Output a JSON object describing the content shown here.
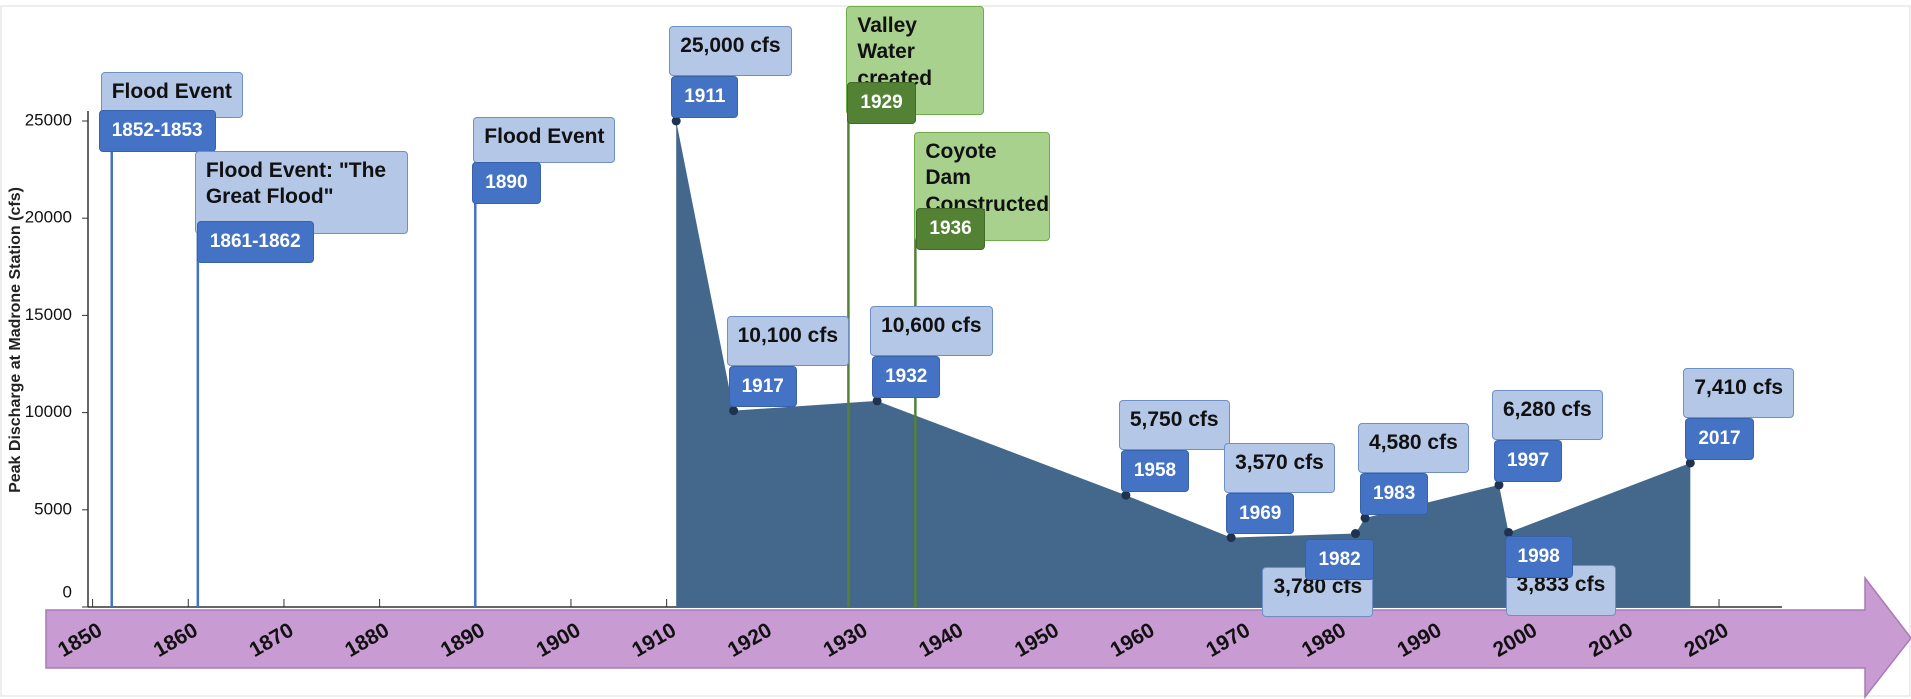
{
  "chart_data": {
    "type": "area",
    "y_label": "Peak Discharge at Madrone Station (cfs)",
    "color": "#44688b",
    "x": [
      1911,
      1917,
      1932,
      1958,
      1969,
      1982,
      1983,
      1997,
      1998,
      2017
    ],
    "values": [
      25000,
      10100,
      10600,
      5750,
      3570,
      3780,
      4580,
      6280,
      3833,
      7410
    ],
    "value_labels": [
      "25,000 cfs",
      "10,100 cfs",
      "10,600 cfs",
      "5,750 cfs",
      "3,570 cfs",
      "3,780 cfs",
      "4,580 cfs",
      "6,280 cfs",
      "3,833 cfs",
      "7,410 cfs"
    ],
    "xlim": [
      1850,
      2027
    ],
    "ylim": [
      0,
      25000
    ],
    "xticks": [
      1850,
      1860,
      1870,
      1880,
      1890,
      1900,
      1910,
      1920,
      1930,
      1940,
      1950,
      1960,
      1970,
      1980,
      1990,
      2000,
      2010,
      2020
    ],
    "yticks": [
      0,
      5000,
      10000,
      15000,
      20000,
      25000
    ],
    "events": [
      {
        "label": "Flood Event",
        "period": "1852-1853",
        "x": 1852,
        "color": "#4472c4"
      },
      {
        "label": "Flood Event: \"The Great Flood\"",
        "period": "1861-1862",
        "x": 1861,
        "color": "#4472c4"
      },
      {
        "label": "Flood Event",
        "period": "1890",
        "x": 1890,
        "color": "#4472c4"
      },
      {
        "label": "Valley Water created",
        "period": "1929",
        "x": 1929,
        "color": "#548235"
      },
      {
        "label": "Coyote Dam Constructed",
        "period": "1936",
        "x": 1936,
        "color": "#548235"
      }
    ]
  }
}
